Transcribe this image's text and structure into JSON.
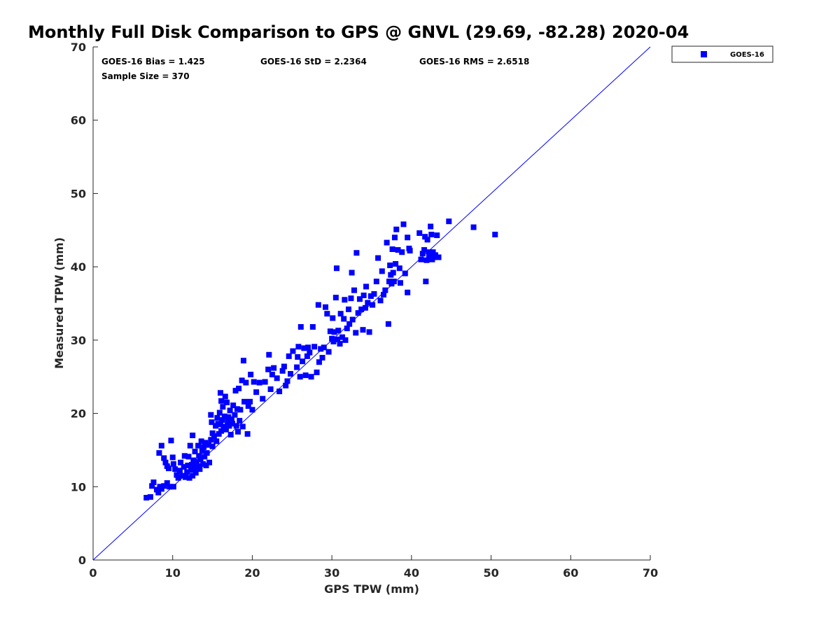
{
  "chart_data": {
    "type": "scatter",
    "title": "Monthly Full Disk Comparison to GPS @ GNVL (29.69, -82.28) 2020-04",
    "xlabel": "GPS TPW (mm)",
    "ylabel": "Measured TPW (mm)",
    "xlim": [
      0,
      70
    ],
    "ylim": [
      0,
      70
    ],
    "xticks": [
      "0",
      "10",
      "20",
      "30",
      "40",
      "50",
      "60",
      "70"
    ],
    "yticks": [
      "0",
      "10",
      "20",
      "30",
      "40",
      "50",
      "60",
      "70"
    ],
    "grid": false,
    "reference_line": {
      "from": [
        0,
        0
      ],
      "to": [
        70,
        70
      ],
      "color": "#0000ff"
    },
    "stats": {
      "bias": "GOES-16 Bias = 1.425",
      "std": "GOES-16 StD = 2.2364",
      "rms": "GOES-16 RMS = 2.6518",
      "sample_size": "Sample Size = 370"
    },
    "legend": {
      "placement": "top-right-outside",
      "label": "GOES-16"
    },
    "series": [
      {
        "name": "GOES-16",
        "color": "#0000ff",
        "marker": "square",
        "points": [
          [
            6.7,
            8.5
          ],
          [
            7.2,
            8.6
          ],
          [
            7.4,
            10.1
          ],
          [
            7.6,
            10.6
          ],
          [
            8.0,
            9.6
          ],
          [
            8.2,
            9.2
          ],
          [
            8.4,
            10.0
          ],
          [
            8.6,
            9.7
          ],
          [
            8.9,
            10.1
          ],
          [
            9.3,
            10.5
          ],
          [
            9.6,
            10.0
          ],
          [
            10.1,
            10.0
          ],
          [
            8.3,
            14.6
          ],
          [
            8.6,
            15.6
          ],
          [
            8.9,
            13.9
          ],
          [
            9.1,
            13.3
          ],
          [
            9.3,
            12.8
          ],
          [
            9.5,
            12.5
          ],
          [
            9.8,
            16.3
          ],
          [
            10.0,
            14.0
          ],
          [
            10.1,
            13.1
          ],
          [
            10.3,
            12.4
          ],
          [
            10.5,
            11.6
          ],
          [
            10.7,
            11.2
          ],
          [
            10.9,
            12.2
          ],
          [
            11.0,
            13.3
          ],
          [
            11.2,
            11.5
          ],
          [
            11.4,
            12.7
          ],
          [
            11.5,
            14.2
          ],
          [
            11.6,
            11.3
          ],
          [
            11.8,
            12.0
          ],
          [
            11.9,
            12.9
          ],
          [
            12.0,
            14.1
          ],
          [
            12.1,
            11.2
          ],
          [
            12.2,
            15.6
          ],
          [
            12.3,
            12.3
          ],
          [
            12.4,
            13.0
          ],
          [
            12.5,
            17.0
          ],
          [
            12.5,
            11.5
          ],
          [
            12.6,
            13.6
          ],
          [
            12.7,
            12.4
          ],
          [
            12.8,
            14.8
          ],
          [
            12.9,
            11.9
          ],
          [
            13.0,
            13.4
          ],
          [
            13.1,
            12.8
          ],
          [
            13.2,
            15.6
          ],
          [
            13.3,
            14.2
          ],
          [
            13.4,
            12.4
          ],
          [
            13.5,
            13.8
          ],
          [
            13.6,
            16.2
          ],
          [
            13.7,
            14.9
          ],
          [
            13.8,
            13.1
          ],
          [
            13.9,
            15.4
          ],
          [
            14.0,
            14.1
          ],
          [
            14.1,
            16.0
          ],
          [
            14.2,
            12.9
          ],
          [
            14.3,
            14.6
          ],
          [
            14.5,
            15.7
          ],
          [
            14.6,
            13.3
          ],
          [
            14.8,
            16.4
          ],
          [
            15.0,
            17.3
          ],
          [
            15.0,
            15.5
          ],
          [
            14.9,
            18.8
          ],
          [
            14.8,
            19.8
          ],
          [
            15.2,
            16.9
          ],
          [
            15.4,
            18.3
          ],
          [
            15.5,
            16.2
          ],
          [
            15.6,
            19.4
          ],
          [
            15.7,
            18.6
          ],
          [
            15.8,
            17.2
          ],
          [
            15.9,
            20.1
          ],
          [
            16.0,
            22.8
          ],
          [
            16.0,
            18.5
          ],
          [
            16.1,
            21.7
          ],
          [
            16.1,
            17.6
          ],
          [
            16.2,
            19.1
          ],
          [
            16.3,
            20.9
          ],
          [
            16.4,
            18.2
          ],
          [
            16.5,
            19.6
          ],
          [
            16.6,
            22.3
          ],
          [
            16.7,
            17.8
          ],
          [
            16.8,
            21.5
          ],
          [
            16.9,
            18.9
          ],
          [
            17.0,
            19.5
          ],
          [
            17.1,
            18.3
          ],
          [
            17.2,
            20.4
          ],
          [
            17.3,
            17.1
          ],
          [
            17.4,
            19.2
          ],
          [
            17.5,
            18.6
          ],
          [
            17.6,
            21.1
          ],
          [
            17.8,
            19.8
          ],
          [
            17.9,
            23.1
          ],
          [
            18.0,
            18.3
          ],
          [
            18.1,
            20.6
          ],
          [
            18.2,
            17.5
          ],
          [
            18.3,
            23.4
          ],
          [
            18.4,
            19.0
          ],
          [
            18.5,
            20.5
          ],
          [
            18.7,
            24.5
          ],
          [
            18.8,
            18.2
          ],
          [
            18.9,
            27.2
          ],
          [
            19.0,
            21.6
          ],
          [
            19.2,
            24.2
          ],
          [
            19.4,
            17.2
          ],
          [
            19.5,
            21.0
          ],
          [
            19.7,
            21.6
          ],
          [
            19.8,
            25.3
          ],
          [
            20.0,
            20.5
          ],
          [
            20.2,
            24.3
          ],
          [
            20.5,
            22.9
          ],
          [
            20.9,
            24.2
          ],
          [
            21.3,
            22.0
          ],
          [
            21.6,
            24.3
          ],
          [
            22.0,
            26.0
          ],
          [
            22.1,
            28.0
          ],
          [
            22.3,
            23.3
          ],
          [
            22.5,
            25.3
          ],
          [
            22.7,
            26.2
          ],
          [
            23.1,
            24.8
          ],
          [
            23.4,
            23.0
          ],
          [
            23.8,
            25.8
          ],
          [
            24.0,
            26.4
          ],
          [
            24.2,
            23.8
          ],
          [
            24.4,
            24.4
          ],
          [
            24.6,
            27.8
          ],
          [
            24.8,
            25.4
          ],
          [
            25.1,
            28.5
          ],
          [
            25.6,
            26.3
          ],
          [
            25.7,
            27.7
          ],
          [
            25.8,
            29.1
          ],
          [
            26.0,
            25.0
          ],
          [
            26.1,
            31.8
          ],
          [
            26.3,
            27.1
          ],
          [
            26.5,
            28.9
          ],
          [
            26.7,
            25.2
          ],
          [
            26.9,
            27.8
          ],
          [
            27.0,
            29.0
          ],
          [
            27.2,
            28.3
          ],
          [
            27.4,
            25.0
          ],
          [
            27.6,
            31.8
          ],
          [
            27.8,
            29.1
          ],
          [
            28.1,
            25.6
          ],
          [
            28.3,
            34.8
          ],
          [
            28.4,
            27.0
          ],
          [
            28.6,
            28.8
          ],
          [
            28.8,
            27.6
          ],
          [
            29.0,
            29.0
          ],
          [
            29.2,
            34.5
          ],
          [
            29.4,
            33.6
          ],
          [
            29.6,
            28.4
          ],
          [
            29.8,
            31.2
          ],
          [
            30.0,
            30.2
          ],
          [
            30.1,
            33.0
          ],
          [
            30.2,
            29.8
          ],
          [
            30.3,
            31.1
          ],
          [
            30.5,
            35.8
          ],
          [
            30.6,
            39.8
          ],
          [
            30.7,
            30.1
          ],
          [
            30.8,
            31.3
          ],
          [
            31.0,
            29.5
          ],
          [
            31.1,
            33.6
          ],
          [
            31.3,
            30.4
          ],
          [
            31.5,
            32.9
          ],
          [
            31.6,
            35.5
          ],
          [
            31.7,
            30.0
          ],
          [
            31.9,
            31.6
          ],
          [
            32.1,
            34.2
          ],
          [
            32.2,
            32.2
          ],
          [
            32.4,
            35.7
          ],
          [
            32.5,
            39.2
          ],
          [
            32.6,
            32.8
          ],
          [
            32.8,
            36.8
          ],
          [
            33.0,
            31.0
          ],
          [
            33.1,
            41.9
          ],
          [
            33.3,
            33.7
          ],
          [
            33.5,
            35.6
          ],
          [
            33.7,
            34.2
          ],
          [
            33.9,
            31.4
          ],
          [
            34.0,
            36.1
          ],
          [
            34.2,
            34.4
          ],
          [
            34.3,
            37.3
          ],
          [
            34.5,
            35.1
          ],
          [
            34.7,
            31.1
          ],
          [
            34.9,
            36.0
          ],
          [
            35.1,
            34.8
          ],
          [
            35.3,
            36.3
          ],
          [
            35.6,
            38.0
          ],
          [
            35.8,
            41.2
          ],
          [
            36.1,
            35.4
          ],
          [
            36.3,
            39.4
          ],
          [
            36.5,
            36.2
          ],
          [
            36.7,
            36.8
          ],
          [
            36.9,
            43.3
          ],
          [
            37.1,
            32.2
          ],
          [
            37.2,
            38.0
          ],
          [
            37.3,
            40.2
          ],
          [
            37.4,
            38.9
          ],
          [
            37.5,
            37.7
          ],
          [
            37.6,
            42.4
          ],
          [
            37.7,
            39.2
          ],
          [
            37.8,
            38.0
          ],
          [
            37.9,
            44.0
          ],
          [
            38.0,
            40.4
          ],
          [
            38.1,
            45.1
          ],
          [
            38.3,
            42.3
          ],
          [
            38.5,
            39.8
          ],
          [
            38.6,
            37.8
          ],
          [
            38.8,
            42.0
          ],
          [
            39.0,
            45.8
          ],
          [
            39.2,
            39.1
          ],
          [
            39.5,
            36.5
          ],
          [
            39.7,
            42.5
          ],
          [
            39.8,
            42.2
          ],
          [
            39.5,
            44.0
          ],
          [
            41.0,
            44.6
          ],
          [
            41.2,
            41.0
          ],
          [
            41.4,
            41.8
          ],
          [
            41.6,
            42.3
          ],
          [
            41.7,
            44.1
          ],
          [
            41.8,
            38.0
          ],
          [
            41.9,
            40.9
          ],
          [
            42.0,
            43.7
          ],
          [
            42.2,
            41.5
          ],
          [
            42.3,
            42.0
          ],
          [
            42.4,
            45.5
          ],
          [
            42.5,
            44.4
          ],
          [
            42.6,
            41.0
          ],
          [
            42.7,
            42.0
          ],
          [
            42.8,
            41.3
          ],
          [
            43.0,
            41.6
          ],
          [
            43.2,
            44.3
          ],
          [
            43.4,
            41.3
          ],
          [
            44.7,
            46.2
          ],
          [
            47.8,
            45.4
          ],
          [
            50.5,
            44.4
          ]
        ]
      }
    ]
  }
}
